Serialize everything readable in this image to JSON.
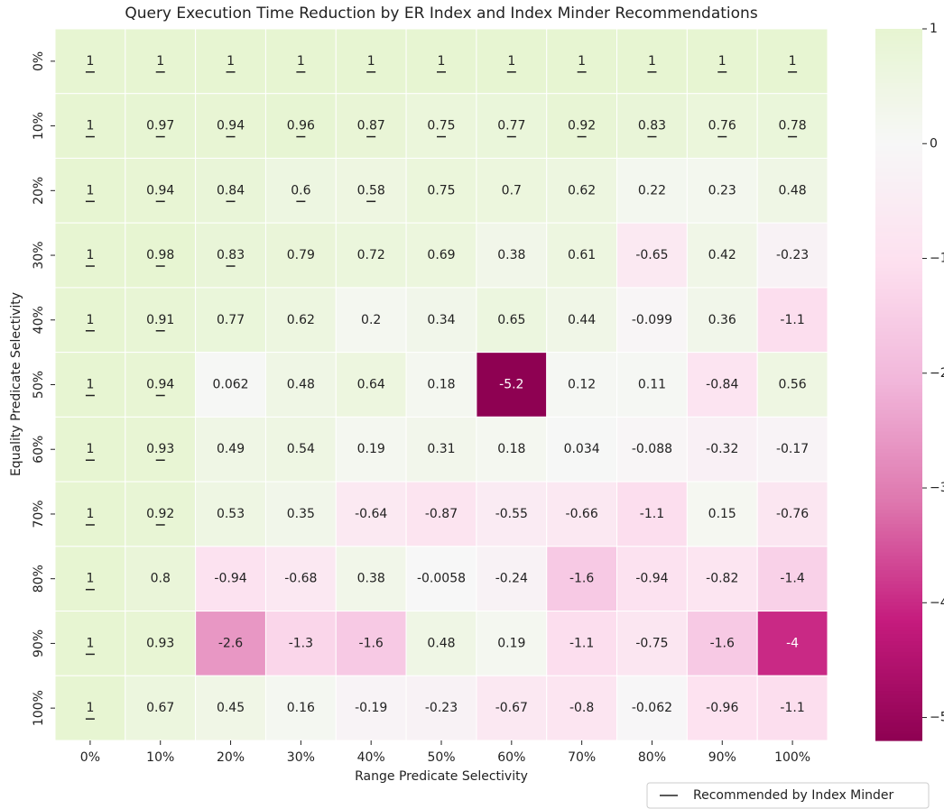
{
  "chart_data": {
    "type": "heatmap",
    "title": "Query Execution Time Reduction by ER Index and Index Minder Recommendations",
    "x_label": "Range Predicate Selectivity",
    "y_label": "Equality Predicate Selectivity",
    "x_categories": [
      "0%",
      "10%",
      "20%",
      "30%",
      "40%",
      "50%",
      "60%",
      "70%",
      "80%",
      "90%",
      "100%"
    ],
    "y_categories": [
      "0%",
      "10%",
      "20%",
      "30%",
      "40%",
      "50%",
      "60%",
      "70%",
      "80%",
      "90%",
      "100%"
    ],
    "values": [
      [
        1,
        1,
        1,
        1,
        1,
        1,
        1,
        1,
        1,
        1,
        1
      ],
      [
        1,
        0.97,
        0.94,
        0.96,
        0.87,
        0.75,
        0.77,
        0.92,
        0.83,
        0.76,
        0.78
      ],
      [
        1,
        0.94,
        0.84,
        0.6,
        0.58,
        0.75,
        0.7,
        0.62,
        0.22,
        0.23,
        0.48
      ],
      [
        1,
        0.98,
        0.83,
        0.79,
        0.72,
        0.69,
        0.38,
        0.61,
        -0.65,
        0.42,
        -0.23
      ],
      [
        1,
        0.91,
        0.77,
        0.62,
        0.2,
        0.34,
        0.65,
        0.44,
        -0.099,
        0.36,
        -1.1
      ],
      [
        1,
        0.94,
        0.062,
        0.48,
        0.64,
        0.18,
        -5.2,
        0.12,
        0.11,
        -0.84,
        0.56
      ],
      [
        1,
        0.93,
        0.49,
        0.54,
        0.19,
        0.31,
        0.18,
        0.034,
        -0.088,
        -0.32,
        -0.17
      ],
      [
        1,
        0.92,
        0.53,
        0.35,
        -0.64,
        -0.87,
        -0.55,
        -0.66,
        -1.1,
        0.15,
        -0.76
      ],
      [
        1,
        0.8,
        -0.94,
        -0.68,
        0.38,
        -0.0058,
        -0.24,
        -1.6,
        -0.94,
        -0.82,
        -1.4
      ],
      [
        1,
        0.93,
        -2.6,
        -1.3,
        -1.6,
        0.48,
        0.19,
        -1.1,
        -0.75,
        -1.6,
        -4
      ],
      [
        1,
        0.67,
        0.45,
        0.16,
        -0.19,
        -0.23,
        -0.67,
        -0.8,
        -0.062,
        -0.96,
        -1.1
      ]
    ],
    "recommended": [
      [
        true,
        true,
        true,
        true,
        true,
        true,
        true,
        true,
        true,
        true,
        true
      ],
      [
        true,
        true,
        true,
        true,
        true,
        true,
        true,
        true,
        true,
        true,
        true
      ],
      [
        true,
        true,
        true,
        true,
        true,
        false,
        false,
        false,
        false,
        false,
        false
      ],
      [
        true,
        true,
        true,
        false,
        false,
        false,
        false,
        false,
        false,
        false,
        false
      ],
      [
        true,
        true,
        false,
        false,
        false,
        false,
        false,
        false,
        false,
        false,
        false
      ],
      [
        true,
        true,
        false,
        false,
        false,
        false,
        false,
        false,
        false,
        false,
        false
      ],
      [
        true,
        true,
        false,
        false,
        false,
        false,
        false,
        false,
        false,
        false,
        false
      ],
      [
        true,
        true,
        false,
        false,
        false,
        false,
        false,
        false,
        false,
        false,
        false
      ],
      [
        true,
        false,
        false,
        false,
        false,
        false,
        false,
        false,
        false,
        false,
        false
      ],
      [
        true,
        false,
        false,
        false,
        false,
        false,
        false,
        false,
        false,
        false,
        false
      ],
      [
        true,
        false,
        false,
        false,
        false,
        false,
        false,
        false,
        false,
        false,
        false
      ]
    ],
    "colormap": [
      "#8e0152",
      "#c51b7d",
      "#de77ae",
      "#f1b6da",
      "#fde0ef",
      "#f7f7f7",
      "#e6f5d0",
      "#b8e186",
      "#7fbc41",
      "#4d9221",
      "#276419"
    ],
    "color_center": 0,
    "clim": [
      -5.2,
      1
    ],
    "cticks": [
      {
        "value": -5,
        "label": "−5"
      },
      {
        "value": -4,
        "label": "−4"
      },
      {
        "value": -3,
        "label": "−3"
      },
      {
        "value": -2,
        "label": "−2"
      },
      {
        "value": -1,
        "label": "−1"
      },
      0,
      1
    ],
    "legend": {
      "label": "Recommended by Index Minder",
      "location": "lower right"
    }
  }
}
